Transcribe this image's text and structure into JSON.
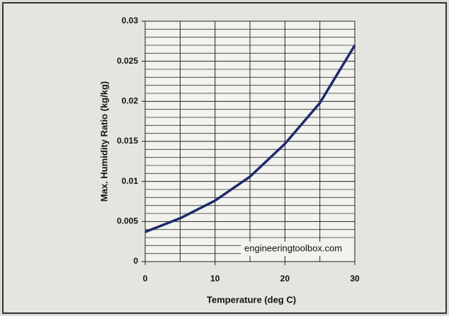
{
  "chart_data": {
    "type": "line",
    "x": [
      0,
      5,
      10,
      15,
      20,
      25,
      30
    ],
    "values": [
      0.0037,
      0.0054,
      0.0076,
      0.0106,
      0.0147,
      0.0198,
      0.027
    ],
    "color": "#1f2a6b",
    "xlim": [
      0,
      30
    ],
    "xticks": [
      0,
      10,
      20,
      30
    ],
    "x_minor_ticks": [
      5,
      15,
      25
    ],
    "ylim": [
      0,
      0.03
    ],
    "yticks": [
      0,
      0.005,
      0.01,
      0.015,
      0.02,
      0.025,
      0.03
    ],
    "y_minor_ticks": [
      0.001,
      0.002,
      0.003,
      0.004,
      0.006,
      0.007,
      0.008,
      0.009,
      0.011,
      0.012,
      0.013,
      0.014,
      0.016,
      0.017,
      0.018,
      0.019,
      0.021,
      0.022,
      0.023,
      0.024,
      0.026,
      0.027,
      0.028,
      0.029
    ],
    "xlabel": "Temperature (deg C)",
    "ylabel": "Max. Humidity Ratio (kg/kg)",
    "annotation": "engineeringtoolbox.com",
    "grid": true
  }
}
